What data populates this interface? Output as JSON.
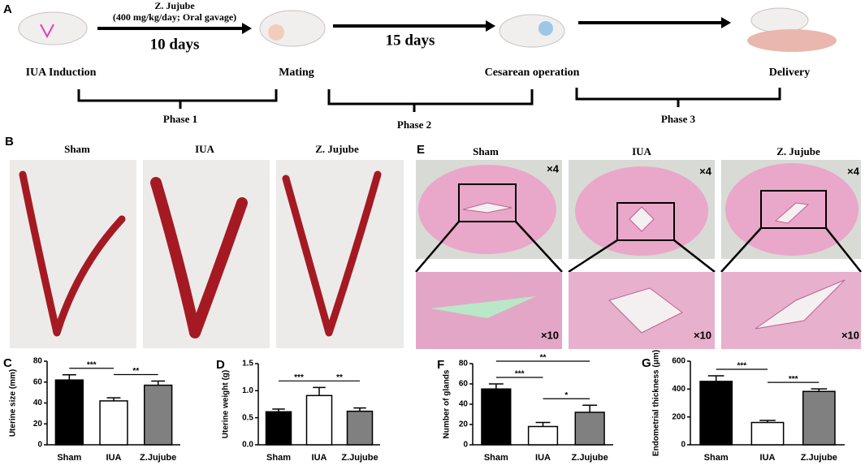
{
  "panel_labels": [
    "A",
    "B",
    "C",
    "D",
    "E",
    "F",
    "G"
  ],
  "timeline": {
    "treatment": "Z. Jujube",
    "dose": "(400 mg/kg/day; Oral gavage)",
    "intervals": [
      "10 days",
      "15 days"
    ],
    "stages": [
      "IUA Induction",
      "Mating",
      "Cesarean operation",
      "Delivery"
    ],
    "phases": [
      "Phase 1",
      "Phase 2",
      "Phase 3"
    ]
  },
  "gross_photos": {
    "groups": [
      "Sham",
      "IUA",
      "Z. Jujube"
    ]
  },
  "histology": {
    "groups": [
      "Sham",
      "IUA",
      "Z. Jujube"
    ],
    "magnifications": [
      "×4",
      "×10"
    ]
  },
  "chart_data": [
    {
      "type": "bar",
      "y_label": "Uterine size (mm)",
      "categories": [
        "Sham",
        "IUA",
        "Z.Jujube"
      ],
      "values": [
        62,
        42,
        57
      ],
      "errors": [
        5,
        3,
        4
      ],
      "colors": [
        "#000000",
        "#ffffff",
        "#808080"
      ],
      "ylim": [
        0,
        80
      ],
      "yticks": [
        0,
        20,
        40,
        60,
        80
      ],
      "annotations": [
        {
          "text": "***",
          "from": "Sham",
          "to": "IUA"
        },
        {
          "text": "**",
          "from": "IUA",
          "to": "Z.Jujube"
        }
      ]
    },
    {
      "type": "bar",
      "y_label": "Uterine weight (g)",
      "categories": [
        "Sham",
        "IUA",
        "Z.Jujube"
      ],
      "values": [
        0.61,
        0.91,
        0.62
      ],
      "errors": [
        0.05,
        0.15,
        0.06
      ],
      "colors": [
        "#000000",
        "#ffffff",
        "#808080"
      ],
      "ylim": [
        0,
        1.5
      ],
      "yticks": [
        {
          "value": 0,
          "label": "0.0"
        },
        {
          "value": 0.5,
          "label": "0.5"
        },
        {
          "value": 1,
          "label": "1.0"
        },
        {
          "value": 1.5,
          "label": "1.5"
        }
      ],
      "annotations": [
        {
          "text": "***",
          "from": "Sham",
          "to": "IUA"
        },
        {
          "text": "**",
          "from": "IUA",
          "to": "Z.Jujube"
        }
      ]
    },
    {
      "type": "bar",
      "y_label": "Number of glands",
      "categories": [
        "Sham",
        "IUA",
        "Z.Jujube"
      ],
      "values": [
        55,
        18,
        32
      ],
      "errors": [
        5,
        4,
        7
      ],
      "colors": [
        "#000000",
        "#ffffff",
        "#808080"
      ],
      "ylim": [
        0,
        80
      ],
      "yticks": [
        0,
        20,
        40,
        60,
        80
      ],
      "annotations": [
        {
          "text": "***",
          "from": "Sham",
          "to": "IUA"
        },
        {
          "text": "*",
          "from": "IUA",
          "to": "Z.Jujube"
        },
        {
          "text": "**",
          "from": "Sham",
          "to": "Z.Jujube"
        }
      ]
    },
    {
      "type": "bar",
      "y_label": "Endometrial thickness (μm)",
      "categories": [
        "Sham",
        "IUA",
        "Z.Jujube"
      ],
      "values": [
        455,
        160,
        383
      ],
      "errors": [
        40,
        15,
        18
      ],
      "colors": [
        "#000000",
        "#ffffff",
        "#808080"
      ],
      "ylim": [
        0,
        600
      ],
      "yticks": [
        0,
        200,
        400,
        600
      ],
      "annotations": [
        {
          "text": "***",
          "from": "Sham",
          "to": "IUA"
        },
        {
          "text": "***",
          "from": "IUA",
          "to": "Z.Jujube"
        }
      ]
    }
  ]
}
